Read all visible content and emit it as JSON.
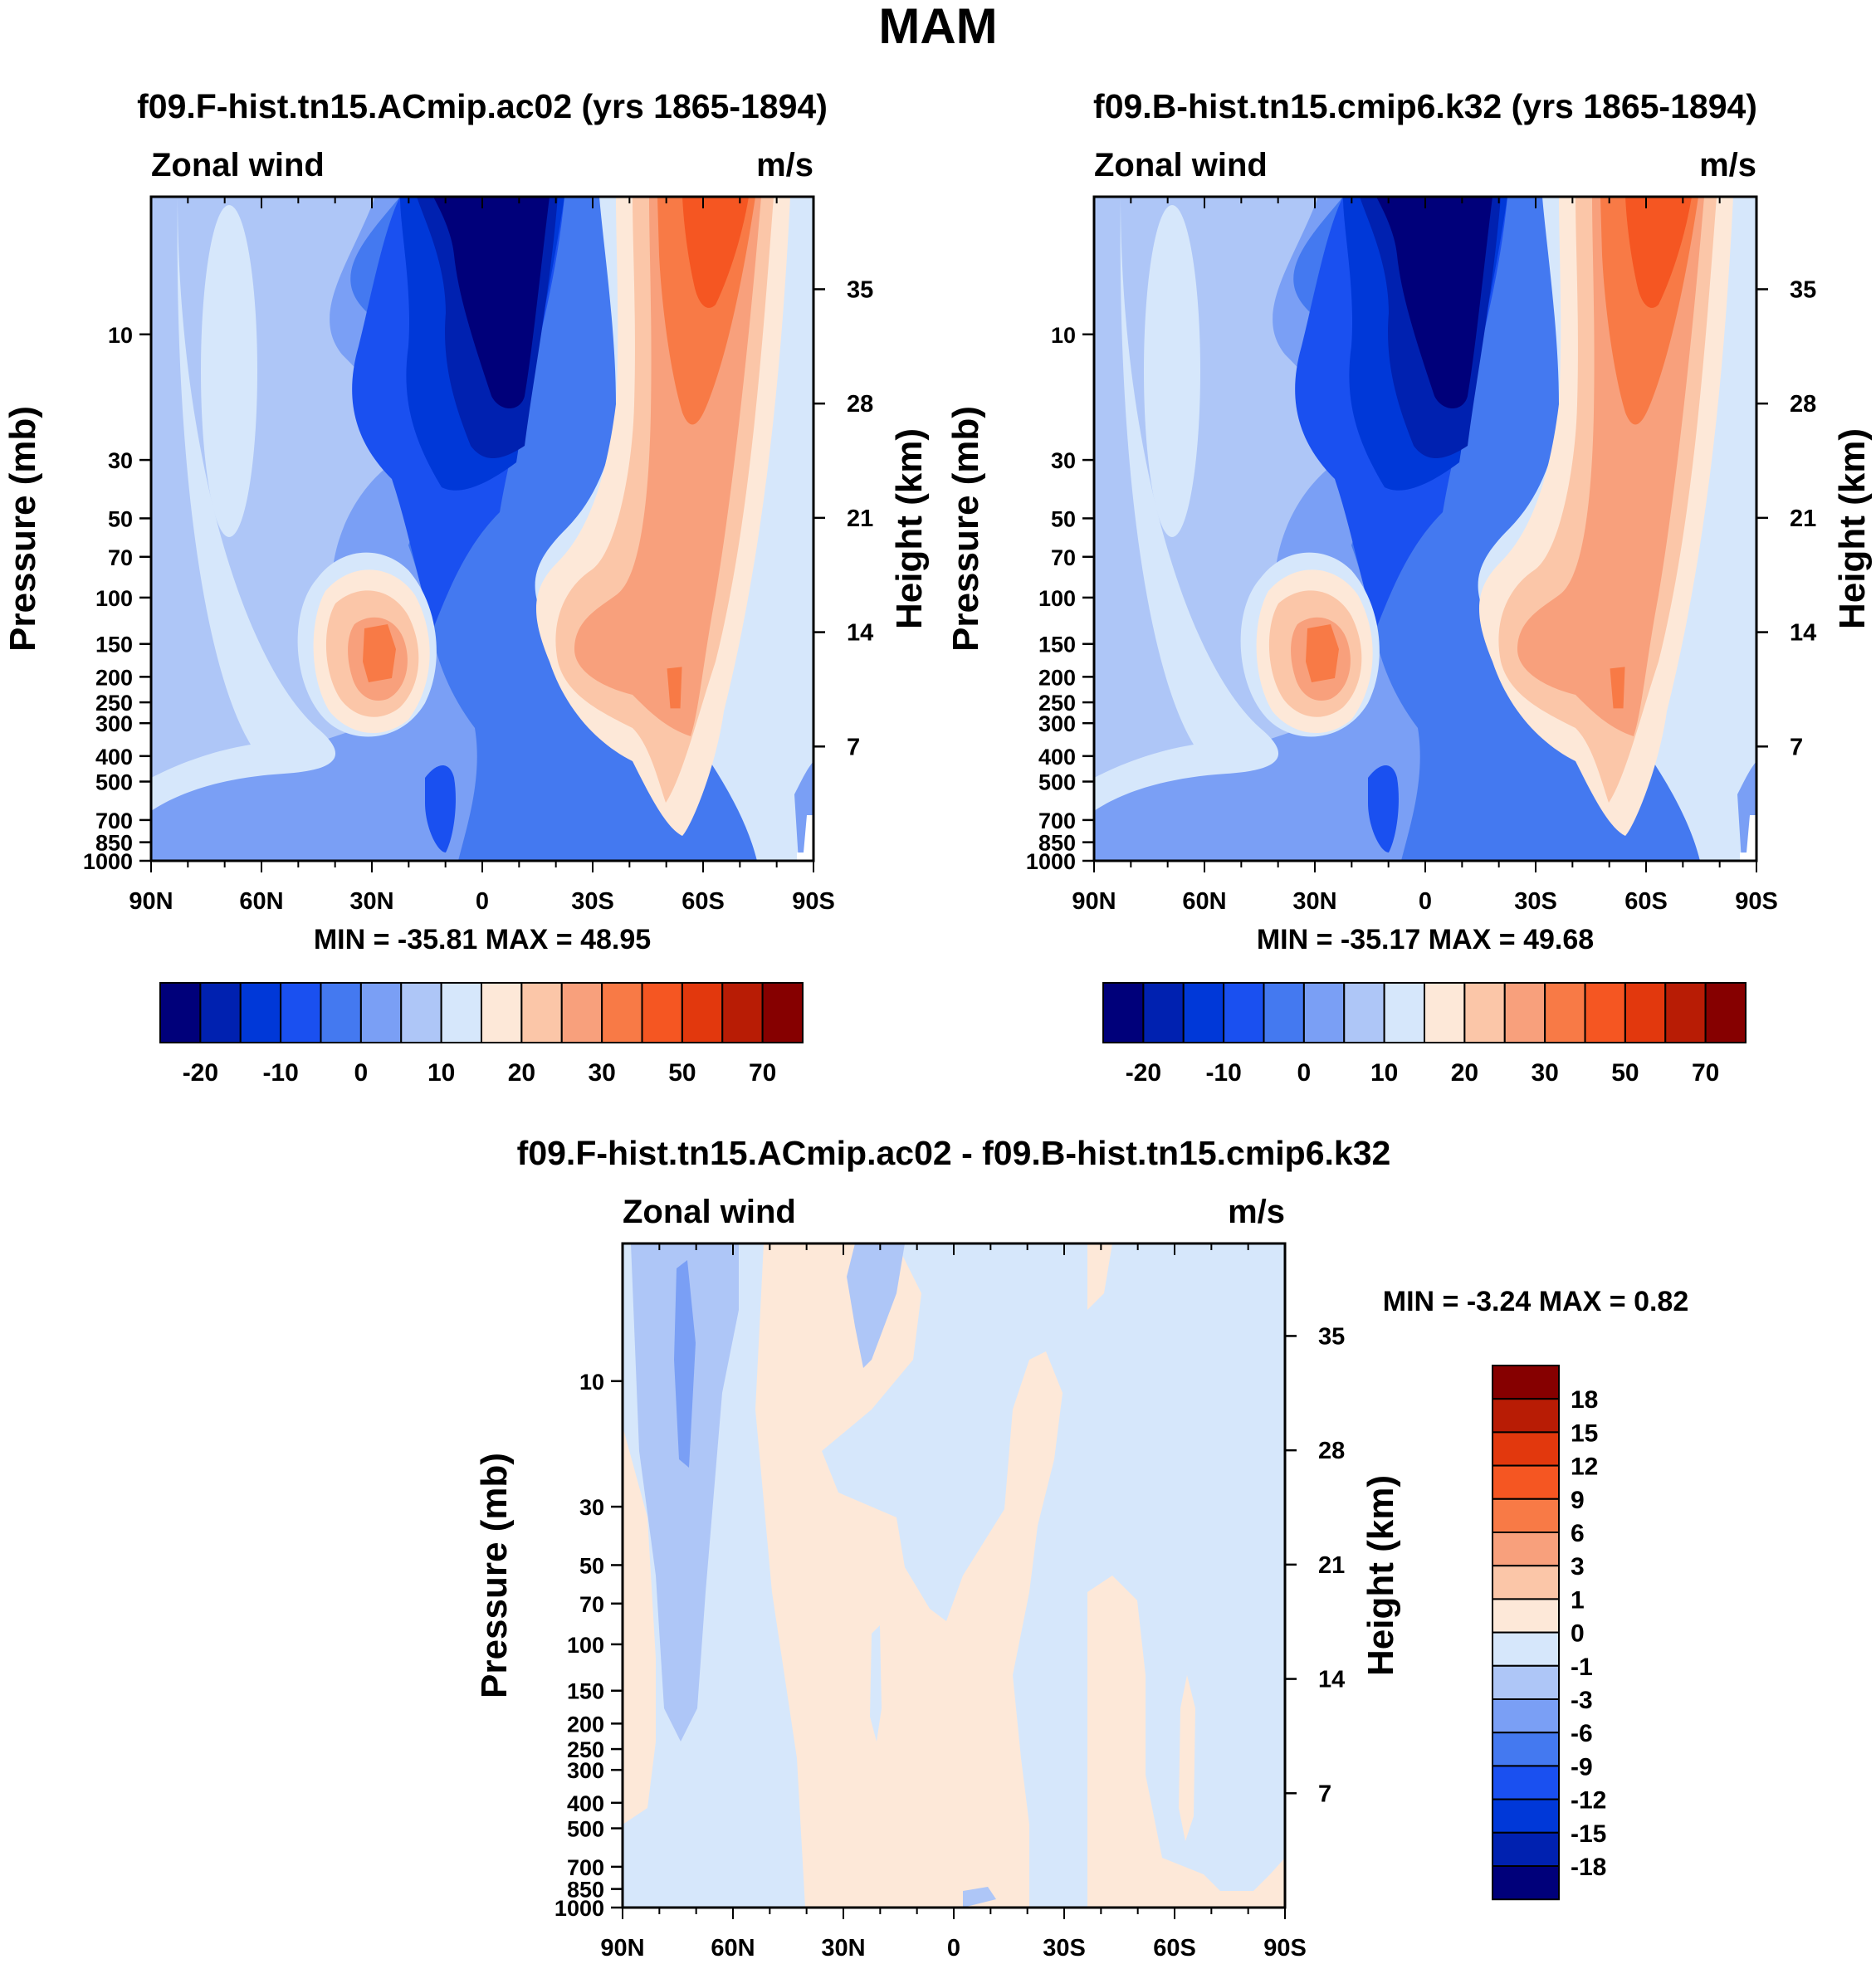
{
  "title": "MAM",
  "shared": {
    "panel_left_label": "Zonal wind",
    "panel_right_label": "m/s",
    "ylabel_left": "Pressure (mb)",
    "ylabel_right": "Height (km)",
    "pressure_ticks": [
      "10",
      "30",
      "50",
      "70",
      "100",
      "150",
      "200",
      "250",
      "300",
      "400",
      "500",
      "700",
      "850",
      "1000"
    ],
    "height_ticks": [
      "35",
      "28",
      "21",
      "14",
      "7"
    ],
    "x_ticks": [
      "90N",
      "60N",
      "30N",
      "0",
      "30S",
      "60S",
      "90S"
    ]
  },
  "chart_data": [
    {
      "type": "heatmap",
      "title": "f09.F-hist.tn15.ACmip.ac02 (yrs 1865-1894)",
      "variable": "Zonal wind",
      "units": "m/s",
      "xlabel": "",
      "ylabel": "Pressure (mb)",
      "ylabel_right": "Height (km)",
      "x_range": [
        90,
        -90
      ],
      "y_range": [
        1000,
        3
      ],
      "stats": "MIN = -35.81   MAX =  48.95",
      "min": -35.81,
      "max": 48.95,
      "colorbar_labels": [
        "-20",
        "-10",
        "0",
        "10",
        "20",
        "30",
        "50",
        "70"
      ],
      "colorbar_levels": [
        -25,
        -20,
        -15,
        -10,
        -5,
        0,
        5,
        10,
        15,
        20,
        25,
        30,
        40,
        50,
        60,
        70,
        80
      ]
    },
    {
      "type": "heatmap",
      "title": "f09.B-hist.tn15.cmip6.k32 (yrs 1865-1894)",
      "variable": "Zonal wind",
      "units": "m/s",
      "xlabel": "",
      "ylabel": "Pressure (mb)",
      "ylabel_right": "Height (km)",
      "x_range": [
        90,
        -90
      ],
      "y_range": [
        1000,
        3
      ],
      "stats": "MIN = -35.17   MAX =  49.68",
      "min": -35.17,
      "max": 49.68,
      "colorbar_labels": [
        "-20",
        "-10",
        "0",
        "10",
        "20",
        "30",
        "50",
        "70"
      ],
      "colorbar_levels": [
        -25,
        -20,
        -15,
        -10,
        -5,
        0,
        5,
        10,
        15,
        20,
        25,
        30,
        40,
        50,
        60,
        70,
        80
      ]
    },
    {
      "type": "heatmap",
      "title": "f09.F-hist.tn15.ACmip.ac02 - f09.B-hist.tn15.cmip6.k32",
      "variable": "Zonal wind",
      "units": "m/s",
      "xlabel": "",
      "ylabel": "Pressure (mb)",
      "ylabel_right": "Height (km)",
      "x_range": [
        90,
        -90
      ],
      "y_range": [
        1000,
        3
      ],
      "stats": "MIN =  -3.24   MAX =    0.82",
      "min": -3.24,
      "max": 0.82,
      "colorbar_labels": [
        "18",
        "15",
        "12",
        "9",
        "6",
        "3",
        "1",
        "0",
        "-1",
        "-3",
        "-6",
        "-9",
        "-12",
        "-15",
        "-18"
      ]
    }
  ],
  "palettes": {
    "main": [
      "#00007a",
      "#0021b0",
      "#0038d8",
      "#1a50f0",
      "#4479f0",
      "#7a9ff5",
      "#aec6f7",
      "#d6e7fb",
      "#fde8d8",
      "#fbc6a8",
      "#f8a07c",
      "#f87a46",
      "#f55622",
      "#e2380d",
      "#b81c05",
      "#860000"
    ],
    "diff_top_to_bottom": [
      "#860000",
      "#b81c05",
      "#e2380d",
      "#f55622",
      "#f87a46",
      "#f8a07c",
      "#fbc6a8",
      "#fde8d8",
      "#d6e7fb",
      "#aec6f7",
      "#7a9ff5",
      "#4479f0",
      "#1a50f0",
      "#0038d8",
      "#0021b0",
      "#00007a"
    ]
  }
}
